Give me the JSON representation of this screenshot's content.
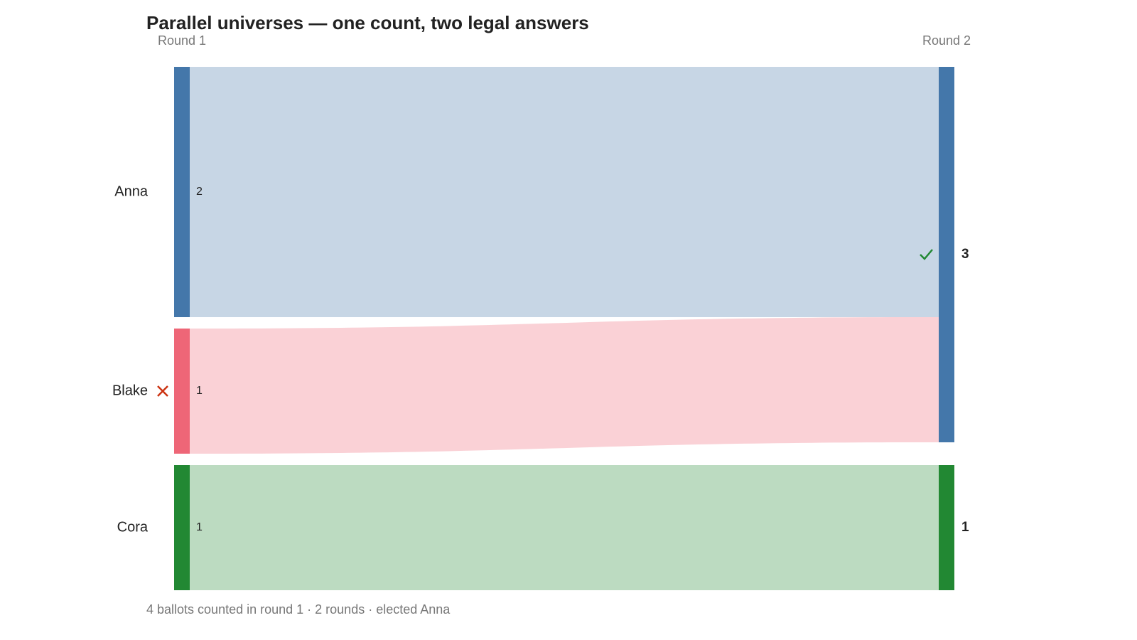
{
  "chart_data": {
    "type": "sankey",
    "title": "Parallel universes — one count, two legal answers",
    "columns": [
      "Round 1",
      "Round 2"
    ],
    "nodes": [
      {
        "name": "Anna",
        "column": 0,
        "value": 2,
        "color": "#4477aa"
      },
      {
        "name": "Blake",
        "column": 0,
        "value": 1,
        "color": "#ee6677",
        "status": "eliminated"
      },
      {
        "name": "Cora",
        "column": 0,
        "value": 1,
        "color": "#228833"
      },
      {
        "column": 1,
        "value": 3,
        "color": "#4477aa",
        "status": "elected"
      },
      {
        "column": 1,
        "value": 1,
        "color": "#228833"
      }
    ],
    "flows": [
      {
        "source": 0,
        "target": 3,
        "value": 2
      },
      {
        "source": 1,
        "target": 3,
        "value": 1
      },
      {
        "source": 2,
        "target": 4,
        "value": 1
      }
    ],
    "footer": "4 ballots counted in round 1 · 2 rounds · elected Anna"
  }
}
